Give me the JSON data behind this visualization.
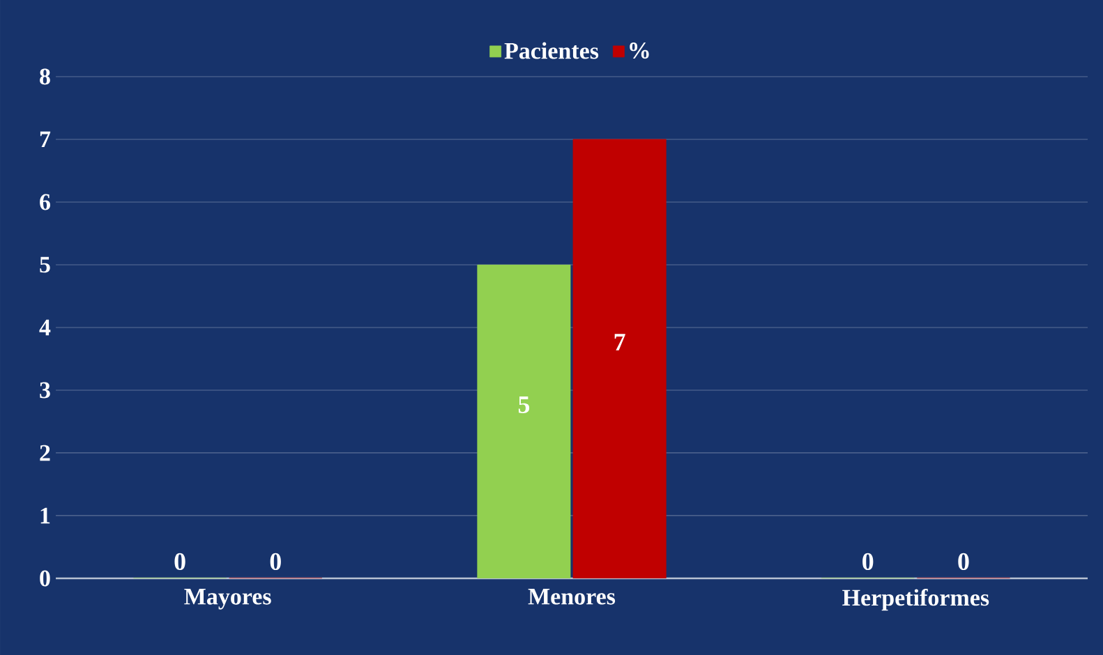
{
  "chart_data": {
    "type": "bar",
    "categories": [
      "Mayores",
      "Menores",
      "Herpetiformes"
    ],
    "series": [
      {
        "name": "Pacientes",
        "color": "#92d050",
        "values": [
          0,
          5,
          0
        ]
      },
      {
        "name": "%",
        "color": "#c00000",
        "values": [
          0,
          7,
          0
        ]
      }
    ],
    "ylim": [
      0,
      8
    ],
    "yticks": [
      0,
      1,
      2,
      3,
      4,
      5,
      6,
      7,
      8
    ],
    "grid": "y",
    "legend": "top",
    "data_labels": true
  }
}
